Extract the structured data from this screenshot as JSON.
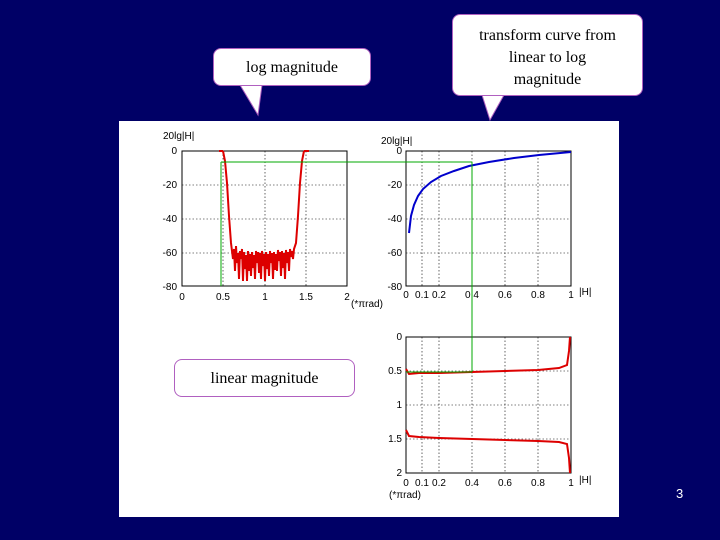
{
  "callouts": {
    "log": "log magnitude",
    "curve_line1": "transform curve from",
    "curve_line2": "linear to log",
    "curve_line3": "magnitude",
    "linear": "linear magnitude"
  },
  "page_number": "3",
  "plots": {
    "left_top": {
      "ylabel": "20lg|H|",
      "yticks": [
        "0",
        "-20",
        "-40",
        "-60",
        "-80"
      ],
      "xticks": [
        "0",
        "0.5",
        "1",
        "1.5",
        "2"
      ],
      "xlabel": "(*πrad)"
    },
    "right_top": {
      "ylabel": "20lg|H|",
      "yticks": [
        "0",
        "-20",
        "-40",
        "-60",
        "-80"
      ],
      "xticks": [
        "0",
        "0.1",
        "0.2",
        "0.4",
        "0.6",
        "0.8",
        "1"
      ],
      "xlabel": "|H|"
    },
    "right_bottom": {
      "yticks": [
        "0",
        "0.5",
        "1",
        "1.5",
        "2"
      ],
      "xticks": [
        "0",
        "0.1",
        "0.2",
        "0.4",
        "0.6",
        "0.8",
        "1"
      ],
      "xlabel": "|H|",
      "ylabel": "(*πrad)"
    }
  },
  "colors": {
    "background": "#000066",
    "callout_border": "#b060c0",
    "response": "#dd0000",
    "transform": "#0000cc",
    "guide": "#00aa00"
  }
}
